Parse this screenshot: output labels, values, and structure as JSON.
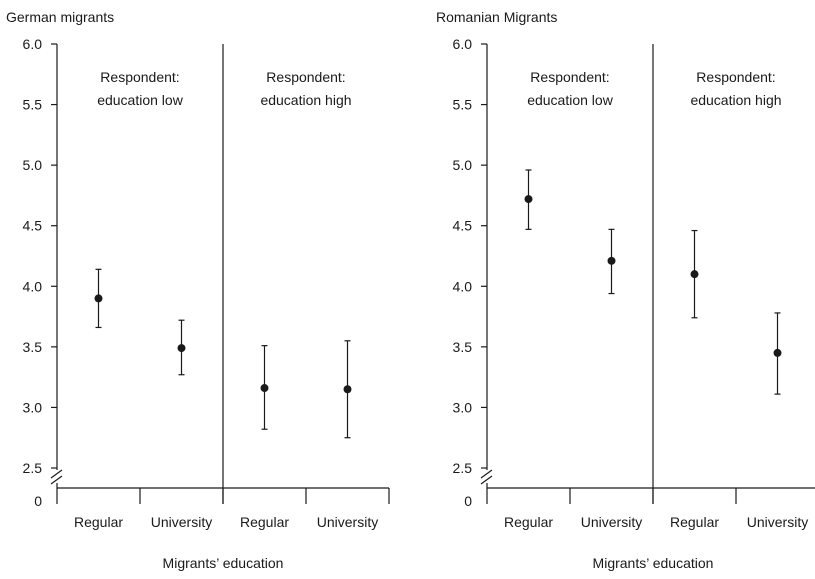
{
  "chart_data": [
    {
      "type": "scatter",
      "title": "German migrants",
      "xlabel": "Migrants’ education",
      "ylabel": "",
      "ylim": [
        2.5,
        6.0
      ],
      "y_ticks": [
        "6.0",
        "5.5",
        "5.0",
        "4.5",
        "4.0",
        "3.5",
        "3.0",
        "2.5"
      ],
      "y_zero_label": "0",
      "axis_break": true,
      "groups": [
        {
          "label": "Respondent: education low",
          "label_lines": [
            "Respondent:",
            "education low"
          ],
          "categories": [
            "Regular",
            "University"
          ],
          "values": [
            3.9,
            3.49
          ],
          "error_low": [
            3.66,
            3.27
          ],
          "error_high": [
            4.14,
            3.72
          ]
        },
        {
          "label": "Respondent: education high",
          "label_lines": [
            "Respondent:",
            "education high"
          ],
          "categories": [
            "Regular",
            "University"
          ],
          "values": [
            3.16,
            3.15
          ],
          "error_low": [
            2.82,
            2.75
          ],
          "error_high": [
            3.51,
            3.55
          ]
        }
      ]
    },
    {
      "type": "scatter",
      "title": "Romanian Migrants",
      "xlabel": "Migrants’ education",
      "ylabel": "",
      "ylim": [
        2.5,
        6.0
      ],
      "y_ticks": [
        "6.0",
        "5.5",
        "5.0",
        "4.5",
        "4.0",
        "3.5",
        "3.0",
        "2.5"
      ],
      "y_zero_label": "0",
      "axis_break": true,
      "groups": [
        {
          "label": "Respondent: education low",
          "label_lines": [
            "Respondent:",
            "education low"
          ],
          "categories": [
            "Regular",
            "University"
          ],
          "values": [
            4.72,
            4.21
          ],
          "error_low": [
            4.47,
            3.94
          ],
          "error_high": [
            4.96,
            4.47
          ]
        },
        {
          "label": "Respondent: education high",
          "label_lines": [
            "Respondent:",
            "education high"
          ],
          "categories": [
            "Regular",
            "University"
          ],
          "values": [
            4.1,
            3.45
          ],
          "error_low": [
            3.74,
            3.11
          ],
          "error_high": [
            4.46,
            3.78
          ]
        }
      ]
    }
  ]
}
